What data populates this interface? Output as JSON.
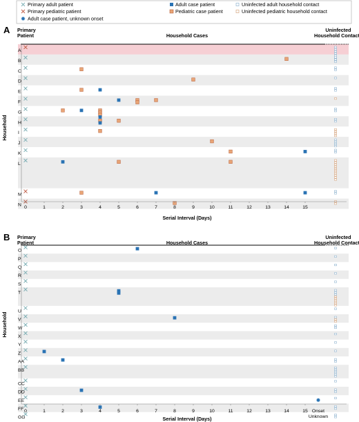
{
  "legend": {
    "primary_adult": "Primary adult patient",
    "primary_pediatric": "Primary pediatric patient",
    "adult_unknown": "Adult case patient, unknown onset",
    "adult_case": "Adult case patient",
    "pediatric_case": "Pediatric case patient",
    "uninfected_adult": "Uninfected adult household contact",
    "uninfected_pediatric": "Uninfected pediatric household contact"
  },
  "colors": {
    "adult": "#2a73b4",
    "pediatric": "#e8a577",
    "pediatric_border": "#b7603a",
    "primary_adult_x": "#7fb0b6",
    "primary_pediatric_x": "#c0604a",
    "stripe": "#ececec",
    "highlight": "#f6cfd4"
  },
  "chart_data": [
    {
      "panel": "A",
      "type": "scatter",
      "title": "Household Cases",
      "left_header": [
        "Primary",
        "Patient"
      ],
      "right_header": [
        "Uninfected",
        "Household Contacts"
      ],
      "xlabel": "Serial Interval (Days)",
      "ylabel": "Household",
      "xlim": [
        0,
        15
      ],
      "x_ticks": [
        "0",
        "1",
        "2",
        "3",
        "4",
        "5",
        "6",
        "7",
        "8",
        "9",
        "10",
        "11",
        "12",
        "13",
        "14",
        "15"
      ],
      "households": [
        {
          "id": "A",
          "primary": "pediatric",
          "cases": [],
          "uninfected": [
            "a",
            "a",
            "a",
            "a",
            "a",
            "a",
            "a"
          ]
        },
        {
          "id": "B",
          "primary": "adult",
          "cases": [
            {
              "x": 14,
              "t": "ped"
            }
          ],
          "uninfected": [
            "a",
            "a",
            "a"
          ]
        },
        {
          "id": "C",
          "primary": "adult",
          "cases": [
            {
              "x": 3,
              "t": "ped"
            }
          ],
          "uninfected": [
            "a",
            "a"
          ]
        },
        {
          "id": "D",
          "primary": "adult",
          "cases": [
            {
              "x": 9,
              "t": "ped"
            }
          ],
          "uninfected": [
            "a"
          ]
        },
        {
          "id": "E",
          "primary": "adult",
          "cases": [
            {
              "x": 3,
              "t": "ped"
            },
            {
              "x": 4,
              "t": "adult"
            }
          ],
          "uninfected": [
            "a",
            "a"
          ]
        },
        {
          "id": "F",
          "primary": "adult",
          "cases": [
            {
              "x": 5,
              "t": "adult"
            },
            {
              "x": 6,
              "t": "ped"
            },
            {
              "x": 6,
              "t": "ped"
            },
            {
              "x": 7,
              "t": "ped"
            }
          ],
          "uninfected": [
            "p"
          ]
        },
        {
          "id": "G",
          "primary": "adult",
          "cases": [
            {
              "x": 2,
              "t": "ped"
            },
            {
              "x": 3,
              "t": "adult"
            },
            {
              "x": 4,
              "t": "ped"
            },
            {
              "x": 4,
              "t": "ped"
            },
            {
              "x": 4,
              "t": "ped"
            },
            {
              "x": 4,
              "t": "adult"
            }
          ],
          "uninfected": [
            "a",
            "a"
          ]
        },
        {
          "id": "H",
          "primary": "adult",
          "cases": [
            {
              "x": 4,
              "t": "ped"
            },
            {
              "x": 4,
              "t": "adult"
            },
            {
              "x": 5,
              "t": "ped"
            }
          ],
          "uninfected": [
            "a",
            "a"
          ]
        },
        {
          "id": "I",
          "primary": "adult",
          "cases": [
            {
              "x": 4,
              "t": "ped"
            }
          ],
          "uninfected": [
            "p",
            "p",
            "p",
            "p"
          ]
        },
        {
          "id": "J",
          "primary": "adult",
          "cases": [
            {
              "x": 10,
              "t": "ped"
            }
          ],
          "uninfected": [
            "a",
            "a",
            "a",
            "a"
          ]
        },
        {
          "id": "K",
          "primary": "adult",
          "cases": [
            {
              "x": 11,
              "t": "ped"
            },
            {
              "x": 15,
              "t": "adult"
            }
          ],
          "uninfected": [
            "a",
            "a"
          ]
        },
        {
          "id": "L",
          "primary": "adult",
          "cases": [
            {
              "x": 5,
              "t": "ped"
            },
            {
              "x": 11,
              "t": "ped"
            },
            {
              "x": 2,
              "t": "adult"
            }
          ],
          "uninfected": [
            "p",
            "p",
            "p",
            "p",
            "p",
            "p",
            "p",
            "p",
            "p",
            "p"
          ]
        },
        {
          "id": "M",
          "primary": "pediatric",
          "cases": [
            {
              "x": 3,
              "t": "ped"
            },
            {
              "x": 7,
              "t": "adult"
            },
            {
              "x": 15,
              "t": "adult"
            }
          ],
          "uninfected": [
            "a",
            "a"
          ]
        },
        {
          "id": "N",
          "primary": "pediatric",
          "cases": [
            {
              "x": 8,
              "t": "ped"
            }
          ],
          "uninfected": [
            "p",
            "p"
          ]
        }
      ]
    },
    {
      "panel": "B",
      "type": "scatter",
      "title": "Household Cases",
      "left_header": [
        "Primary",
        "Patient"
      ],
      "right_header": [
        "Uninfected",
        "Household Contacts"
      ],
      "xlabel": "Serial Interval (Days)",
      "ylabel": "Household",
      "xlim": [
        0,
        15
      ],
      "x_ticks": [
        "0",
        "1",
        "2",
        "3",
        "4",
        "5",
        "6",
        "7",
        "8",
        "9",
        "10",
        "11",
        "12",
        "13",
        "14",
        "15"
      ],
      "extra_tick": [
        "Onset",
        "Unknown"
      ],
      "households": [
        {
          "id": "O",
          "primary": "adult",
          "cases": [
            {
              "x": 6,
              "t": "adult"
            }
          ],
          "uninfected": [
            "a"
          ]
        },
        {
          "id": "P",
          "primary": "adult",
          "cases": [],
          "uninfected": [
            "a"
          ]
        },
        {
          "id": "Q",
          "primary": "adult",
          "cases": [],
          "uninfected": [
            "a"
          ]
        },
        {
          "id": "R",
          "primary": "adult",
          "cases": [],
          "uninfected": [
            "a"
          ]
        },
        {
          "id": "S",
          "primary": "adult",
          "cases": [],
          "uninfected": [
            "a"
          ]
        },
        {
          "id": "T",
          "primary": "adult",
          "cases": [
            {
              "x": 5,
              "t": "adult"
            },
            {
              "x": 5,
              "t": "adult"
            }
          ],
          "uninfected": [
            "a",
            "a",
            "a",
            "p",
            "p",
            "p",
            "p",
            "p"
          ]
        },
        {
          "id": "U",
          "primary": "adult",
          "cases": [],
          "uninfected": [
            "a"
          ]
        },
        {
          "id": "V",
          "primary": "adult",
          "cases": [
            {
              "x": 8,
              "t": "adult"
            }
          ],
          "uninfected": [
            "a",
            "p",
            "p"
          ]
        },
        {
          "id": "W",
          "primary": "adult",
          "cases": [],
          "uninfected": [
            "a",
            "a"
          ]
        },
        {
          "id": "X",
          "primary": "adult",
          "cases": [],
          "uninfected": [
            "a"
          ]
        },
        {
          "id": "Y",
          "primary": "adult",
          "cases": [],
          "uninfected": [
            "a"
          ]
        },
        {
          "id": "Z",
          "primary": "adult",
          "cases": [
            {
              "x": 1,
              "t": "adult"
            }
          ],
          "uninfected": [
            "a"
          ]
        },
        {
          "id": "AA",
          "primary": "adult",
          "cases": [
            {
              "x": 2,
              "t": "adult"
            }
          ],
          "uninfected": [
            "a",
            "a"
          ]
        },
        {
          "id": "BB",
          "primary": "adult",
          "cases": [],
          "uninfected": [
            "a",
            "a",
            "a",
            "a",
            "a"
          ]
        },
        {
          "id": "CC",
          "primary": "adult",
          "cases": [],
          "uninfected": [
            "a"
          ]
        },
        {
          "id": "DD",
          "primary": "adult",
          "cases": [
            {
              "x": 3,
              "t": "adult"
            }
          ],
          "uninfected": [
            "a",
            "a"
          ]
        },
        {
          "id": "EE",
          "primary": "adult",
          "cases": [
            {
              "x": "unknown",
              "t": "unknown"
            }
          ],
          "uninfected": [
            "a"
          ]
        },
        {
          "id": "FF",
          "primary": "adult",
          "cases": [
            {
              "x": 4,
              "t": "adult"
            }
          ],
          "uninfected": [
            "a",
            "a"
          ]
        },
        {
          "id": "GG",
          "primary": "adult",
          "cases": [],
          "uninfected": [
            "a",
            "a"
          ]
        }
      ]
    }
  ]
}
